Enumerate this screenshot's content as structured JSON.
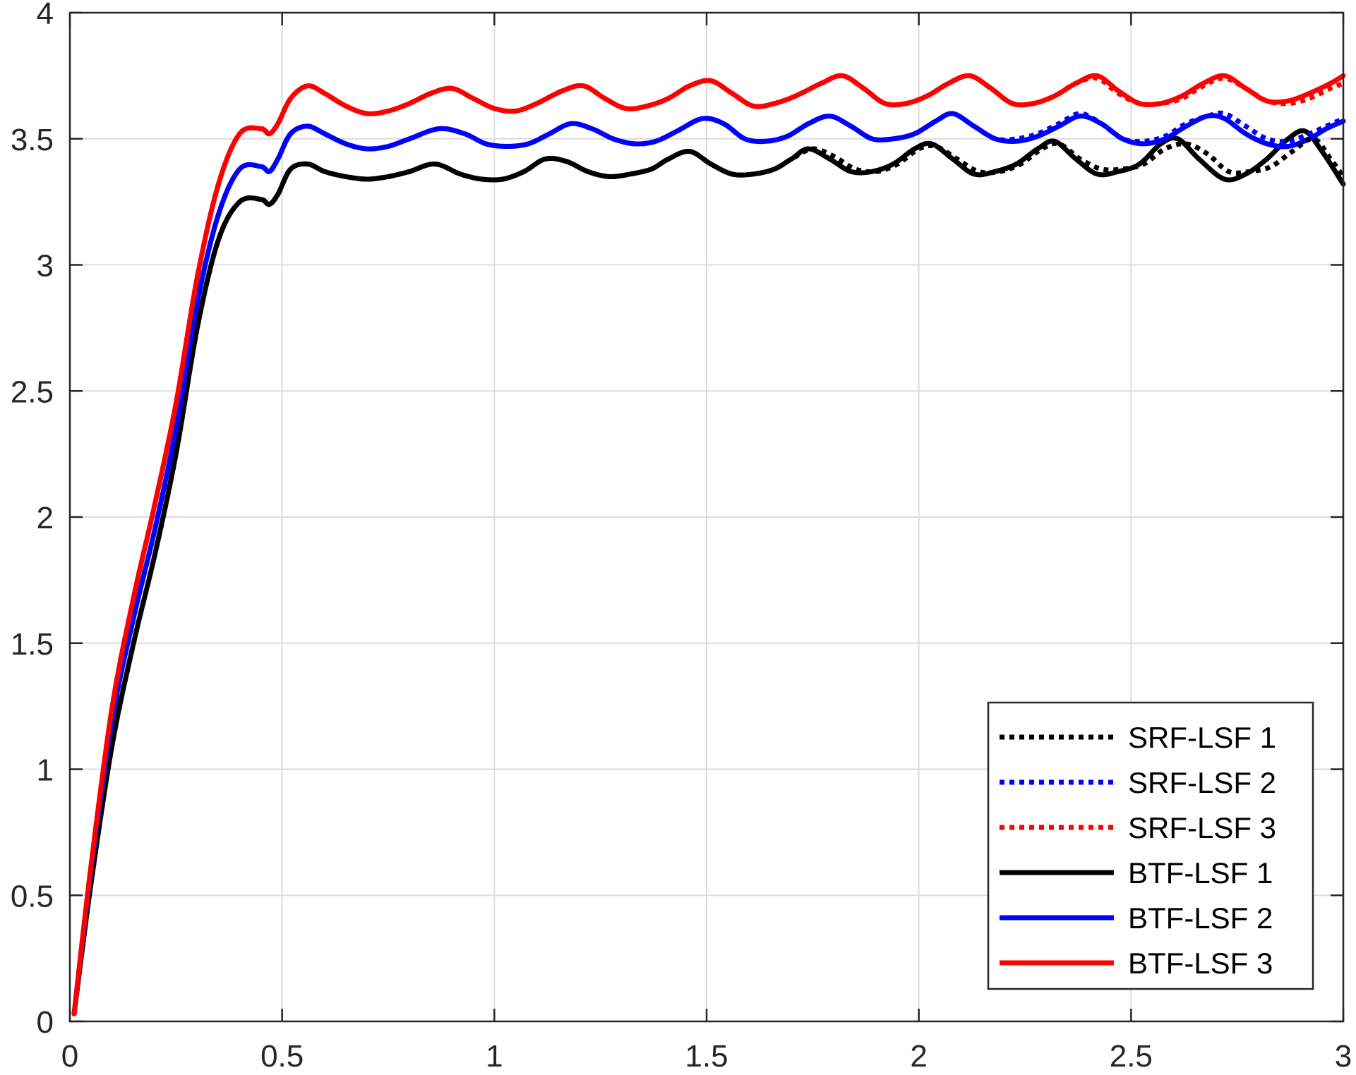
{
  "chart_data": {
    "type": "line",
    "title": "",
    "xlabel": "",
    "ylabel": "",
    "xlim": [
      0,
      3
    ],
    "ylim": [
      0,
      4
    ],
    "xticks": [
      0,
      0.5,
      1,
      1.5,
      2,
      2.5,
      3
    ],
    "xtick_labels": [
      "0",
      "0.5",
      "1",
      "1.5",
      "2",
      "2.5",
      "3"
    ],
    "yticks": [
      0,
      0.5,
      1,
      1.5,
      2,
      2.5,
      3,
      3.5,
      4
    ],
    "ytick_labels": [
      "0",
      "0.5",
      "1",
      "1.5",
      "2",
      "2.5",
      "3",
      "3.5",
      "4"
    ],
    "grid": true,
    "legend_position": "bottom-right",
    "series": [
      {
        "name": "SRF-LSF 1",
        "color": "#000000",
        "style": "dotted",
        "x": [
          0.01,
          0.05,
          0.1,
          0.15,
          0.2,
          0.25,
          0.3,
          0.35,
          0.4,
          0.45,
          0.47,
          0.49,
          0.52,
          0.56,
          0.6,
          0.65,
          0.7,
          0.75,
          0.8,
          0.86,
          0.92,
          0.97,
          1.02,
          1.07,
          1.12,
          1.17,
          1.22,
          1.27,
          1.32,
          1.37,
          1.41,
          1.46,
          1.51,
          1.56,
          1.61,
          1.66,
          1.7,
          1.75,
          1.8,
          1.85,
          1.9,
          1.95,
          2.0,
          2.04,
          2.09,
          2.14,
          2.19,
          2.24,
          2.29,
          2.33,
          2.38,
          2.43,
          2.48,
          2.53,
          2.58,
          2.63,
          2.68,
          2.73,
          2.78,
          2.83,
          2.88,
          2.93,
          2.97,
          3.0
        ],
        "y": [
          0.03,
          0.55,
          1.1,
          1.5,
          1.85,
          2.25,
          2.75,
          3.1,
          3.25,
          3.26,
          3.24,
          3.28,
          3.38,
          3.4,
          3.37,
          3.35,
          3.34,
          3.35,
          3.37,
          3.4,
          3.36,
          3.34,
          3.34,
          3.37,
          3.42,
          3.41,
          3.37,
          3.35,
          3.36,
          3.38,
          3.42,
          3.45,
          3.4,
          3.36,
          3.36,
          3.38,
          3.42,
          3.46,
          3.43,
          3.38,
          3.37,
          3.4,
          3.46,
          3.47,
          3.42,
          3.37,
          3.37,
          3.4,
          3.46,
          3.48,
          3.42,
          3.38,
          3.38,
          3.4,
          3.46,
          3.48,
          3.44,
          3.37,
          3.37,
          3.39,
          3.45,
          3.5,
          3.42,
          3.35
        ]
      },
      {
        "name": "SRF-LSF 2",
        "color": "#0000ff",
        "style": "dotted",
        "x": [
          0.01,
          0.05,
          0.1,
          0.15,
          0.2,
          0.25,
          0.3,
          0.35,
          0.4,
          0.45,
          0.47,
          0.49,
          0.52,
          0.56,
          0.6,
          0.65,
          0.7,
          0.75,
          0.8,
          0.87,
          0.93,
          0.98,
          1.03,
          1.08,
          1.13,
          1.18,
          1.23,
          1.28,
          1.33,
          1.38,
          1.43,
          1.49,
          1.54,
          1.59,
          1.64,
          1.69,
          1.74,
          1.79,
          1.84,
          1.89,
          1.94,
          1.99,
          2.04,
          2.08,
          2.13,
          2.18,
          2.23,
          2.28,
          2.33,
          2.38,
          2.43,
          2.48,
          2.53,
          2.58,
          2.63,
          2.68,
          2.72,
          2.77,
          2.82,
          2.87,
          2.92,
          2.96,
          3.0
        ],
        "y": [
          0.03,
          0.6,
          1.2,
          1.6,
          1.95,
          2.35,
          2.85,
          3.2,
          3.38,
          3.39,
          3.37,
          3.42,
          3.52,
          3.55,
          3.52,
          3.48,
          3.46,
          3.47,
          3.5,
          3.54,
          3.52,
          3.48,
          3.47,
          3.48,
          3.52,
          3.56,
          3.54,
          3.5,
          3.48,
          3.49,
          3.53,
          3.58,
          3.56,
          3.5,
          3.49,
          3.51,
          3.56,
          3.59,
          3.55,
          3.5,
          3.5,
          3.52,
          3.57,
          3.6,
          3.55,
          3.5,
          3.5,
          3.52,
          3.56,
          3.6,
          3.56,
          3.5,
          3.49,
          3.51,
          3.56,
          3.59,
          3.6,
          3.55,
          3.5,
          3.49,
          3.52,
          3.55,
          3.58
        ]
      },
      {
        "name": "SRF-LSF 3",
        "color": "#ff0000",
        "style": "dotted",
        "x": [
          0.01,
          0.05,
          0.1,
          0.15,
          0.2,
          0.25,
          0.3,
          0.35,
          0.4,
          0.45,
          0.47,
          0.49,
          0.52,
          0.56,
          0.6,
          0.65,
          0.7,
          0.75,
          0.8,
          0.85,
          0.9,
          0.95,
          1.0,
          1.05,
          1.1,
          1.16,
          1.21,
          1.26,
          1.31,
          1.36,
          1.41,
          1.46,
          1.51,
          1.56,
          1.61,
          1.66,
          1.71,
          1.77,
          1.82,
          1.87,
          1.92,
          1.97,
          2.02,
          2.07,
          2.12,
          2.17,
          2.22,
          2.27,
          2.32,
          2.37,
          2.42,
          2.47,
          2.52,
          2.57,
          2.62,
          2.67,
          2.72,
          2.77,
          2.82,
          2.87,
          2.92,
          2.97,
          3.0
        ],
        "y": [
          0.03,
          0.62,
          1.25,
          1.68,
          2.05,
          2.45,
          2.95,
          3.32,
          3.52,
          3.54,
          3.52,
          3.56,
          3.66,
          3.71,
          3.68,
          3.63,
          3.6,
          3.61,
          3.64,
          3.68,
          3.7,
          3.66,
          3.62,
          3.61,
          3.64,
          3.69,
          3.71,
          3.66,
          3.62,
          3.63,
          3.66,
          3.71,
          3.73,
          3.68,
          3.63,
          3.64,
          3.67,
          3.72,
          3.75,
          3.7,
          3.64,
          3.64,
          3.67,
          3.72,
          3.75,
          3.7,
          3.64,
          3.64,
          3.67,
          3.72,
          3.74,
          3.68,
          3.64,
          3.64,
          3.66,
          3.71,
          3.74,
          3.7,
          3.65,
          3.64,
          3.66,
          3.7,
          3.72
        ]
      },
      {
        "name": "BTF-LSF 1",
        "color": "#000000",
        "style": "solid",
        "x": [
          0.01,
          0.05,
          0.1,
          0.15,
          0.2,
          0.25,
          0.3,
          0.35,
          0.4,
          0.45,
          0.47,
          0.49,
          0.52,
          0.56,
          0.6,
          0.65,
          0.7,
          0.75,
          0.8,
          0.86,
          0.92,
          0.97,
          1.02,
          1.07,
          1.12,
          1.17,
          1.22,
          1.27,
          1.32,
          1.37,
          1.41,
          1.46,
          1.51,
          1.56,
          1.61,
          1.66,
          1.7,
          1.74,
          1.79,
          1.84,
          1.89,
          1.94,
          1.99,
          2.03,
          2.08,
          2.13,
          2.18,
          2.23,
          2.28,
          2.32,
          2.37,
          2.42,
          2.47,
          2.52,
          2.57,
          2.61,
          2.66,
          2.72,
          2.77,
          2.82,
          2.87,
          2.91,
          2.95,
          3.0
        ],
        "y": [
          0.03,
          0.55,
          1.1,
          1.5,
          1.85,
          2.25,
          2.75,
          3.1,
          3.25,
          3.26,
          3.24,
          3.28,
          3.38,
          3.4,
          3.37,
          3.35,
          3.34,
          3.35,
          3.37,
          3.4,
          3.36,
          3.34,
          3.34,
          3.37,
          3.42,
          3.41,
          3.37,
          3.35,
          3.36,
          3.38,
          3.42,
          3.45,
          3.4,
          3.36,
          3.36,
          3.38,
          3.42,
          3.46,
          3.42,
          3.37,
          3.37,
          3.4,
          3.46,
          3.48,
          3.42,
          3.36,
          3.37,
          3.4,
          3.46,
          3.49,
          3.42,
          3.36,
          3.37,
          3.4,
          3.48,
          3.5,
          3.42,
          3.34,
          3.36,
          3.42,
          3.5,
          3.53,
          3.45,
          3.32
        ]
      },
      {
        "name": "BTF-LSF 2",
        "color": "#0000ff",
        "style": "solid",
        "x": [
          0.01,
          0.05,
          0.1,
          0.15,
          0.2,
          0.25,
          0.3,
          0.35,
          0.4,
          0.45,
          0.47,
          0.49,
          0.52,
          0.56,
          0.6,
          0.65,
          0.7,
          0.75,
          0.8,
          0.87,
          0.93,
          0.98,
          1.03,
          1.08,
          1.13,
          1.18,
          1.23,
          1.28,
          1.33,
          1.38,
          1.43,
          1.49,
          1.54,
          1.59,
          1.64,
          1.69,
          1.74,
          1.79,
          1.84,
          1.89,
          1.94,
          1.99,
          2.04,
          2.08,
          2.13,
          2.18,
          2.23,
          2.28,
          2.33,
          2.38,
          2.43,
          2.48,
          2.53,
          2.58,
          2.63,
          2.68,
          2.72,
          2.77,
          2.82,
          2.87,
          2.92,
          2.96,
          3.0
        ],
        "y": [
          0.03,
          0.6,
          1.2,
          1.6,
          1.95,
          2.35,
          2.85,
          3.2,
          3.38,
          3.39,
          3.37,
          3.42,
          3.52,
          3.55,
          3.52,
          3.48,
          3.46,
          3.47,
          3.5,
          3.54,
          3.52,
          3.48,
          3.47,
          3.48,
          3.52,
          3.56,
          3.54,
          3.5,
          3.48,
          3.49,
          3.53,
          3.58,
          3.56,
          3.5,
          3.49,
          3.51,
          3.56,
          3.59,
          3.55,
          3.5,
          3.5,
          3.52,
          3.57,
          3.6,
          3.55,
          3.5,
          3.49,
          3.51,
          3.55,
          3.59,
          3.56,
          3.5,
          3.48,
          3.5,
          3.55,
          3.59,
          3.58,
          3.52,
          3.48,
          3.47,
          3.5,
          3.54,
          3.57
        ]
      },
      {
        "name": "BTF-LSF 3",
        "color": "#ff0000",
        "style": "solid",
        "x": [
          0.01,
          0.05,
          0.1,
          0.15,
          0.2,
          0.25,
          0.3,
          0.35,
          0.4,
          0.45,
          0.47,
          0.49,
          0.52,
          0.56,
          0.6,
          0.65,
          0.7,
          0.75,
          0.8,
          0.85,
          0.9,
          0.95,
          1.0,
          1.05,
          1.1,
          1.16,
          1.21,
          1.26,
          1.31,
          1.36,
          1.41,
          1.46,
          1.51,
          1.56,
          1.61,
          1.66,
          1.71,
          1.77,
          1.82,
          1.87,
          1.92,
          1.97,
          2.02,
          2.07,
          2.12,
          2.17,
          2.22,
          2.27,
          2.32,
          2.37,
          2.42,
          2.47,
          2.52,
          2.57,
          2.62,
          2.67,
          2.72,
          2.77,
          2.82,
          2.87,
          2.92,
          2.97,
          3.0
        ],
        "y": [
          0.03,
          0.62,
          1.25,
          1.68,
          2.05,
          2.45,
          2.95,
          3.32,
          3.52,
          3.54,
          3.52,
          3.56,
          3.66,
          3.71,
          3.68,
          3.63,
          3.6,
          3.61,
          3.64,
          3.68,
          3.7,
          3.66,
          3.62,
          3.61,
          3.64,
          3.69,
          3.71,
          3.66,
          3.62,
          3.63,
          3.66,
          3.71,
          3.73,
          3.68,
          3.63,
          3.64,
          3.67,
          3.72,
          3.75,
          3.7,
          3.64,
          3.64,
          3.67,
          3.72,
          3.75,
          3.7,
          3.64,
          3.64,
          3.67,
          3.72,
          3.75,
          3.69,
          3.64,
          3.64,
          3.67,
          3.72,
          3.75,
          3.7,
          3.65,
          3.65,
          3.68,
          3.72,
          3.75
        ]
      }
    ]
  }
}
